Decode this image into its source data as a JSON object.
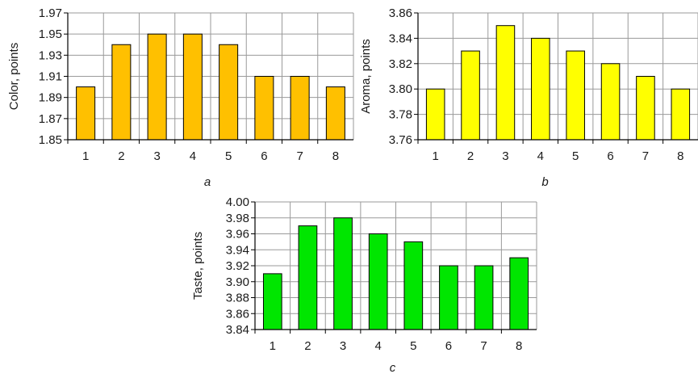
{
  "chart_data": [
    {
      "type": "bar",
      "panel_label": "a",
      "categories": [
        "1",
        "2",
        "3",
        "4",
        "5",
        "6",
        "7",
        "8"
      ],
      "values": [
        1.9,
        1.94,
        1.95,
        1.95,
        1.94,
        1.91,
        1.91,
        1.9
      ],
      "ylabel": "Color, points",
      "xlabel": "",
      "ylim": [
        1.85,
        1.97
      ],
      "yticks": [
        1.85,
        1.87,
        1.89,
        1.91,
        1.93,
        1.95,
        1.97
      ],
      "ytick_labels": [
        "1.85",
        "1.87",
        "1.89",
        "1.91",
        "1.93",
        "1.95",
        "1.97"
      ],
      "bar_color": "#ffc000",
      "grid": true
    },
    {
      "type": "bar",
      "panel_label": "b",
      "categories": [
        "1",
        "2",
        "3",
        "4",
        "5",
        "6",
        "7",
        "8"
      ],
      "values": [
        3.8,
        3.83,
        3.85,
        3.84,
        3.83,
        3.82,
        3.81,
        3.8
      ],
      "ylabel": "Aroma, points",
      "xlabel": "",
      "ylim": [
        3.76,
        3.86
      ],
      "yticks": [
        3.76,
        3.78,
        3.8,
        3.82,
        3.84,
        3.86
      ],
      "ytick_labels": [
        "3.76",
        "3.78",
        "3.80",
        "3.82",
        "3.84",
        "3.86"
      ],
      "bar_color": "#ffff00",
      "grid": true
    },
    {
      "type": "bar",
      "panel_label": "c",
      "categories": [
        "1",
        "2",
        "3",
        "4",
        "5",
        "6",
        "7",
        "8"
      ],
      "values": [
        3.91,
        3.97,
        3.98,
        3.96,
        3.95,
        3.92,
        3.92,
        3.93
      ],
      "ylabel": "Taste, points",
      "xlabel": "",
      "ylim": [
        3.84,
        4.0
      ],
      "yticks": [
        3.84,
        3.86,
        3.88,
        3.9,
        3.92,
        3.94,
        3.96,
        3.98,
        4.0
      ],
      "ytick_labels": [
        "3.84",
        "3.86",
        "3.88",
        "3.90",
        "3.92",
        "3.94",
        "3.96",
        "3.98",
        "4.00"
      ],
      "bar_color": "#00e600",
      "grid": true
    }
  ]
}
